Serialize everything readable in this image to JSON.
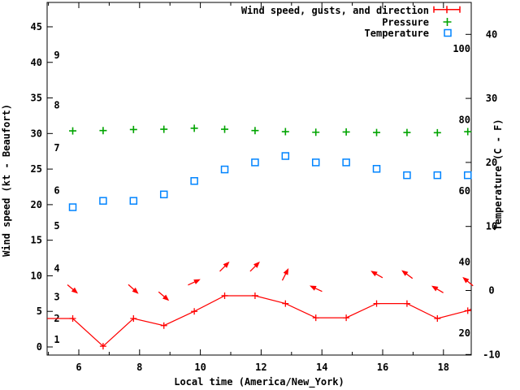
{
  "page": {
    "background": "#ffffff"
  },
  "colors": {
    "wind": "#ff0000",
    "pressure": "#00a400",
    "temperature": "#0084ff",
    "axis": "#000000"
  },
  "legend": {
    "items": [
      {
        "label": "Wind speed, gusts, and direction",
        "series": "wind",
        "sample": "errorbar"
      },
      {
        "label": "Pressure",
        "series": "pressure",
        "sample": "plus"
      },
      {
        "label": "Temperature",
        "series": "temperature",
        "sample": "square"
      }
    ]
  },
  "axes": {
    "left": {
      "title": "Wind speed (kt - Beaufort)",
      "unit": "kt",
      "tick_values": [
        0,
        5,
        10,
        15,
        20,
        25,
        30,
        35,
        40,
        45
      ],
      "beaufort_scale_labels": [
        {
          "bf": "1",
          "kt": 1
        },
        {
          "bf": "2",
          "kt": 4
        },
        {
          "bf": "3",
          "kt": 7
        },
        {
          "bf": "4",
          "kt": 11
        },
        {
          "bf": "5",
          "kt": 17
        },
        {
          "bf": "6",
          "kt": 22
        },
        {
          "bf": "7",
          "kt": 28
        },
        {
          "bf": "8",
          "kt": 34
        },
        {
          "bf": "9",
          "kt": 41
        }
      ]
    },
    "right": {
      "title": "Temperature (C - F)",
      "unit": "C",
      "tick_values_c": [
        -10,
        0,
        10,
        20,
        30,
        40
      ],
      "fahrenheit_labels": [
        20,
        40,
        60,
        80,
        100
      ]
    },
    "bottom": {
      "title": "Local time (America/New_York)",
      "major_tick_hours": [
        6,
        8,
        10,
        12,
        14,
        16,
        18
      ],
      "minor_tick_hours": [
        5,
        7,
        9,
        11,
        13,
        15,
        17
      ]
    }
  },
  "chart_data": {
    "type": "line",
    "title": "",
    "xlabel": "Local time (America/New_York)",
    "ylabel_left": "Wind speed (kt - Beaufort)",
    "ylabel_right": "Temperature (C - F)",
    "x_range_hours": [
      4.96,
      18.9
    ],
    "y_left_range_kt": [
      0,
      48.4
    ],
    "y_right_range_c": [
      -10,
      45
    ],
    "grid": false,
    "legend_position": "top-right-inside",
    "x_hours": [
      5.8,
      6.8,
      7.8,
      8.8,
      9.8,
      10.8,
      11.8,
      12.8,
      13.8,
      14.8,
      15.8,
      16.8,
      17.8,
      18.8
    ],
    "series": [
      {
        "name": "Wind speed, gusts, and direction",
        "style": "line-points-arrows",
        "axis": "left",
        "unit": "kt",
        "values": [
          4.0,
          0.1,
          4.0,
          3.0,
          5.0,
          7.2,
          7.2,
          6.1,
          4.1,
          4.1,
          6.1,
          6.1,
          4.0,
          5.1
        ],
        "direction_deg_screen": [
          -40,
          null,
          -42,
          -40,
          25,
          45,
          45,
          63,
          155,
          null,
          150,
          143,
          149,
          140
        ],
        "edge_start": {
          "hour": 4.96,
          "kt": 4.0
        },
        "edge_end": {
          "hour": 18.9,
          "kt": 5.3
        }
      },
      {
        "name": "Pressure",
        "style": "points-plus",
        "axis": "left",
        "unit": "inHg (read on left axis)",
        "values": [
          30.37,
          30.41,
          30.56,
          30.6,
          30.74,
          30.6,
          30.41,
          30.26,
          30.18,
          30.22,
          30.14,
          30.14,
          30.11,
          30.26
        ]
      },
      {
        "name": "Temperature",
        "style": "points-square",
        "axis": "right",
        "unit": "C",
        "values": [
          13.0,
          14.0,
          14.0,
          15.0,
          17.1,
          18.9,
          20.0,
          21.0,
          20.0,
          20.0,
          19.0,
          18.0,
          18.0,
          18.0
        ]
      }
    ]
  }
}
